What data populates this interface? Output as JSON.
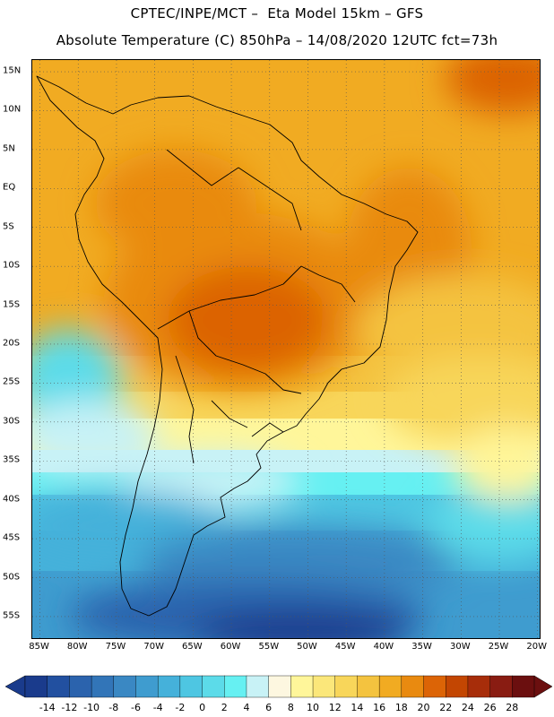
{
  "header": {
    "line1": "CPTEC/INPE/MCT –  Eta Model 15km – GFS",
    "line2": "Absolute Temperature (C) 850hPa – 14/08/2020 12UTC fct=73h"
  },
  "map": {
    "lat_labels": [
      "15N",
      "10N",
      "5N",
      "EQ",
      "5S",
      "10S",
      "15S",
      "20S",
      "25S",
      "30S",
      "35S",
      "40S",
      "45S",
      "50S",
      "55S"
    ],
    "lat_values": [
      15,
      10,
      5,
      0,
      -5,
      -10,
      -15,
      -20,
      -25,
      -30,
      -35,
      -40,
      -45,
      -50,
      -55
    ],
    "lon_labels": [
      "85W",
      "80W",
      "75W",
      "70W",
      "65W",
      "60W",
      "55W",
      "50W",
      "45W",
      "40W",
      "35W",
      "30W",
      "25W",
      "20W"
    ],
    "lon_values": [
      -85,
      -80,
      -75,
      -70,
      -65,
      -60,
      -55,
      -50,
      -45,
      -40,
      -35,
      -30,
      -25,
      -20
    ],
    "lat_range": [
      -58,
      16.5
    ],
    "lon_range": [
      -86,
      -19.5
    ],
    "grid": "dotted"
  },
  "colorbar": {
    "labels": [
      "-14",
      "-12",
      "-10",
      "-8",
      "-6",
      "-4",
      "-2",
      "0",
      "2",
      "4",
      "6",
      "8",
      "10",
      "12",
      "14",
      "16",
      "18",
      "20",
      "22",
      "24",
      "26",
      "28"
    ],
    "colors": [
      "#1a3b8c",
      "#2250a0",
      "#2b63ad",
      "#3275b8",
      "#3a88c3",
      "#3f9ccf",
      "#45b1da",
      "#4ec6e2",
      "#5cdbe9",
      "#66f0f2",
      "#c8f2f6",
      "#fdf7e0",
      "#fff69a",
      "#fbe77a",
      "#f8d65a",
      "#f4c33f",
      "#f1ab22",
      "#e98a10",
      "#dc6406",
      "#c34602",
      "#a72d0a",
      "#891c12",
      "#6b0f0f"
    ],
    "left_arrow_color": "#1a3b8c",
    "right_arrow_color": "#6b0f0f"
  }
}
